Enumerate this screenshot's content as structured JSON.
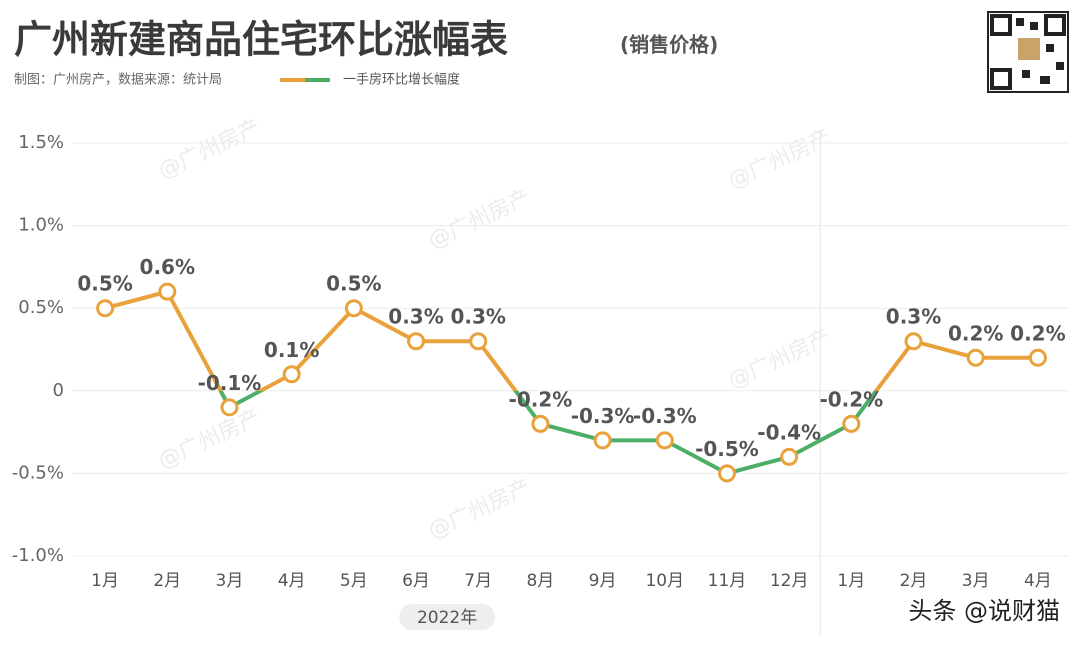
{
  "chart_data": {
    "type": "line",
    "title": "广州新建商品住宅环比涨幅表",
    "subtitle": "(销售价格)",
    "note": "制图：广州房产，数据来源：统计局",
    "watermark": "@广州房产",
    "credit": "头条 @说财猫",
    "categories": [
      "1月",
      "2月",
      "3月",
      "4月",
      "5月",
      "6月",
      "7月",
      "8月",
      "9月",
      "10月",
      "11月",
      "12月",
      "1月",
      "2月",
      "3月",
      "4月"
    ],
    "x_group_labels": [
      "2022年"
    ],
    "series": [
      {
        "name": "一手房环比增长幅度",
        "color": "#e9a23b",
        "negative_color": "#4daf67",
        "values": [
          0.5,
          0.6,
          -0.1,
          0.1,
          0.5,
          0.3,
          0.3,
          -0.2,
          -0.3,
          -0.3,
          -0.5,
          -0.4,
          -0.2,
          0.3,
          0.2,
          0.2
        ],
        "value_labels": [
          "0.5%",
          "0.6%",
          "-0.1%",
          "0.1%",
          "0.5%",
          "0.3%",
          "0.3%",
          "-0.2%",
          "-0.3%",
          "-0.3%",
          "-0.5%",
          "-0.4%",
          "-0.2%",
          "0.3%",
          "0.2%",
          "0.2%"
        ]
      }
    ],
    "ylim": [
      -1.0,
      1.5
    ],
    "yticks": [
      {
        "value": -1.0,
        "label": "-1.0%"
      },
      {
        "value": -0.5,
        "label": "-0.5%"
      },
      0,
      {
        "value": 0.5,
        "label": "0.5%"
      },
      {
        "value": 1.0,
        "label": "1.0%"
      },
      {
        "value": 1.5,
        "label": "1.5%"
      }
    ],
    "grid": true
  }
}
